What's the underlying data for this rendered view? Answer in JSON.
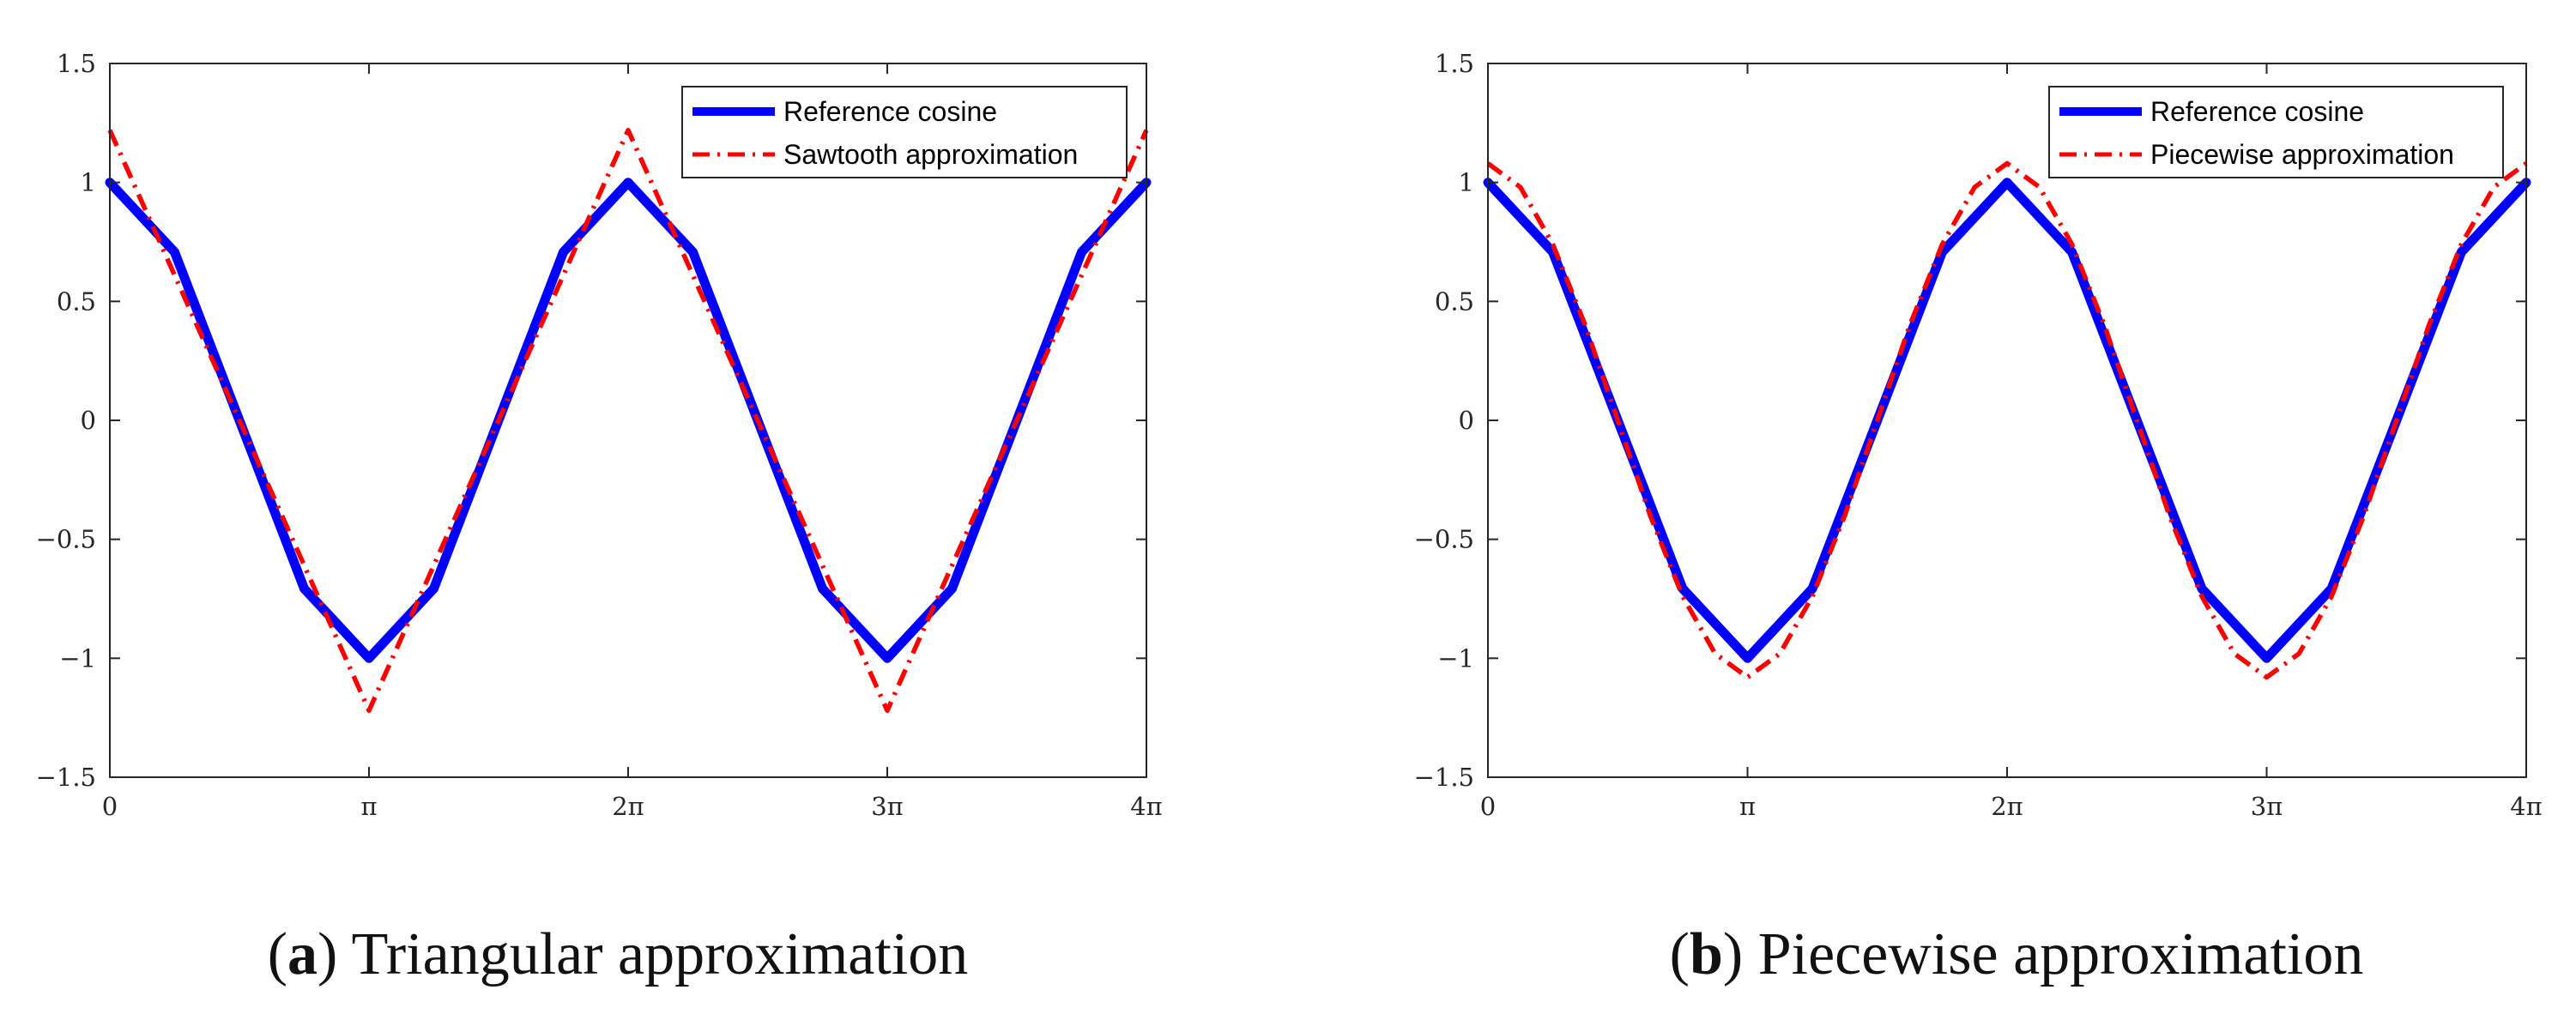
{
  "chart_data": [
    {
      "type": "line",
      "panel_id": "a",
      "caption_letter": "a",
      "caption_text": "Triangular approximation",
      "xlim_pi": [
        0,
        4
      ],
      "ylim": [
        -1.5,
        1.5
      ],
      "x_ticks": [
        {
          "value_pi": 0,
          "label": "0"
        },
        {
          "value_pi": 1,
          "label": "π"
        },
        {
          "value_pi": 2,
          "label": "2π"
        },
        {
          "value_pi": 3,
          "label": "3π"
        },
        {
          "value_pi": 4,
          "label": "4π"
        }
      ],
      "y_ticks": [
        {
          "value": 1.5,
          "label": "1.5"
        },
        {
          "value": 1,
          "label": "1"
        },
        {
          "value": 0.5,
          "label": "0.5"
        },
        {
          "value": 0,
          "label": "0"
        },
        {
          "value": -0.5,
          "label": "−0.5"
        },
        {
          "value": -1,
          "label": "−1"
        },
        {
          "value": -1.5,
          "label": "−1.5"
        }
      ],
      "legend_position": "top-right",
      "series": [
        {
          "name": "Reference cosine",
          "style": "solid",
          "color": "#0000ff",
          "x_pi": [
            0,
            0.25,
            0.5,
            0.75,
            1,
            1.25,
            1.5,
            1.75,
            2,
            2.25,
            2.5,
            2.75,
            3,
            3.25,
            3.5,
            3.75,
            4
          ],
          "y": [
            1,
            0.707,
            0,
            -0.707,
            -1,
            -0.707,
            0,
            0.707,
            1,
            0.707,
            0,
            -0.707,
            -1,
            -0.707,
            0,
            0.707,
            1
          ]
        },
        {
          "name": "Sawtooth approximation",
          "style": "dashdot",
          "color": "#ff0000",
          "x_pi": [
            0,
            1,
            2,
            3,
            4
          ],
          "y": [
            1.22,
            -1.22,
            1.22,
            -1.22,
            1.22
          ]
        }
      ]
    },
    {
      "type": "line",
      "panel_id": "b",
      "caption_letter": "b",
      "caption_text": "Piecewise approximation",
      "xlim_pi": [
        0,
        4
      ],
      "ylim": [
        -1.5,
        1.5
      ],
      "x_ticks": [
        {
          "value_pi": 0,
          "label": "0"
        },
        {
          "value_pi": 1,
          "label": "π"
        },
        {
          "value_pi": 2,
          "label": "2π"
        },
        {
          "value_pi": 3,
          "label": "3π"
        },
        {
          "value_pi": 4,
          "label": "4π"
        }
      ],
      "y_ticks": [
        {
          "value": 1.5,
          "label": "1.5"
        },
        {
          "value": 1,
          "label": "1"
        },
        {
          "value": 0.5,
          "label": "0.5"
        },
        {
          "value": 0,
          "label": "0"
        },
        {
          "value": -0.5,
          "label": "−0.5"
        },
        {
          "value": -1,
          "label": "−1"
        },
        {
          "value": -1.5,
          "label": "−1.5"
        }
      ],
      "legend_position": "top-right",
      "series": [
        {
          "name": "Reference cosine",
          "style": "solid",
          "color": "#0000ff",
          "x_pi": [
            0,
            0.25,
            0.5,
            0.75,
            1,
            1.25,
            1.5,
            1.75,
            2,
            2.25,
            2.5,
            2.75,
            3,
            3.25,
            3.5,
            3.75,
            4
          ],
          "y": [
            1,
            0.707,
            0,
            -0.707,
            -1,
            -0.707,
            0,
            0.707,
            1,
            0.707,
            0,
            -0.707,
            -1,
            -0.707,
            0,
            0.707,
            1
          ]
        },
        {
          "name": "Piecewise approximation",
          "style": "dashdot",
          "color": "#ff0000",
          "x_pi": [
            0,
            0.125,
            0.25,
            0.375,
            0.5,
            0.625,
            0.75,
            0.875,
            1,
            1.125,
            1.25,
            1.375,
            1.5,
            1.625,
            1.75,
            1.875,
            2,
            2.125,
            2.25,
            2.375,
            2.5,
            2.625,
            2.75,
            2.875,
            3,
            3.125,
            3.25,
            3.375,
            3.5,
            3.625,
            3.75,
            3.875,
            4
          ],
          "y": [
            1.08,
            0.98,
            0.74,
            0.4,
            0,
            -0.4,
            -0.74,
            -0.98,
            -1.08,
            -0.98,
            -0.74,
            -0.4,
            0,
            0.4,
            0.74,
            0.98,
            1.08,
            0.98,
            0.74,
            0.4,
            0,
            -0.4,
            -0.74,
            -0.98,
            -1.08,
            -0.98,
            -0.74,
            -0.4,
            0,
            0.4,
            0.74,
            0.98,
            1.08
          ]
        }
      ]
    }
  ]
}
